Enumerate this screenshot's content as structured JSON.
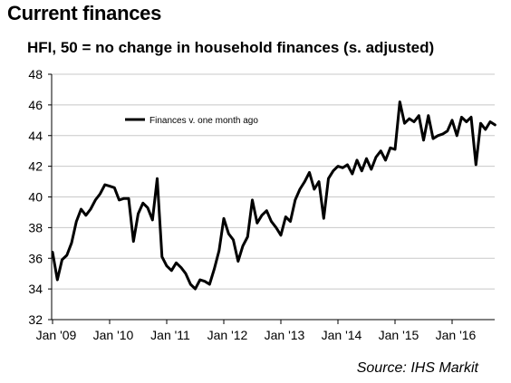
{
  "title": "Current finances",
  "subtitle": "HFI, 50 = no change in household finances (s. adjusted)",
  "source": "Source: IHS Markit",
  "chart_data": {
    "type": "line",
    "title": "Current finances",
    "subtitle": "HFI, 50 = no change in household finances (s. adjusted)",
    "ylim": [
      32,
      48
    ],
    "yticks": [
      32,
      34,
      36,
      38,
      40,
      42,
      44,
      46,
      48
    ],
    "xticks": [
      "Jan '09",
      "Jan '10",
      "Jan '11",
      "Jan '12",
      "Jan '13",
      "Jan '14",
      "Jan '15",
      "Jan '16"
    ],
    "start": "2009-01",
    "legend_position": "top-left",
    "grid": true,
    "line_color": "#000000",
    "series": [
      {
        "name": "Finances v. one month ago",
        "values": [
          36.4,
          34.6,
          35.9,
          36.2,
          37.0,
          38.4,
          39.2,
          38.8,
          39.2,
          39.8,
          40.2,
          40.8,
          40.7,
          40.6,
          39.8,
          39.9,
          39.9,
          37.1,
          38.9,
          39.6,
          39.3,
          38.5,
          41.2,
          36.1,
          35.5,
          35.2,
          35.7,
          35.4,
          35.0,
          34.3,
          34.0,
          34.6,
          34.5,
          34.3,
          35.3,
          36.5,
          38.6,
          37.6,
          37.2,
          35.8,
          36.8,
          37.4,
          39.8,
          38.3,
          38.8,
          39.1,
          38.4,
          38.0,
          37.5,
          38.7,
          38.4,
          39.8,
          40.5,
          41.0,
          41.6,
          40.5,
          41.0,
          38.6,
          41.2,
          41.7,
          42.0,
          41.9,
          42.1,
          41.5,
          42.4,
          41.7,
          42.5,
          41.8,
          42.6,
          43.0,
          42.4,
          43.2,
          43.1,
          46.2,
          44.8,
          45.1,
          44.9,
          45.3,
          43.7,
          45.3,
          43.8,
          44.0,
          44.1,
          44.3,
          45.0,
          44.0,
          45.2,
          44.9,
          45.2,
          42.1,
          44.8,
          44.4,
          44.9,
          44.7
        ]
      }
    ]
  }
}
